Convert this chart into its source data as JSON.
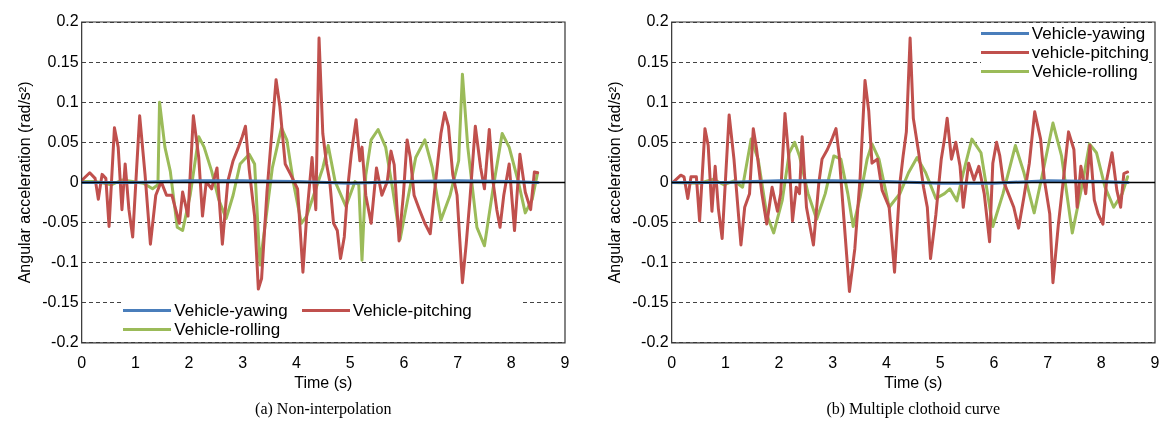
{
  "chart_data": [
    {
      "type": "line",
      "title": "(a) Non-interpolation",
      "xlabel": "Time (s)",
      "ylabel": "Angular acceleration (rad/s²)",
      "xlim": [
        0,
        9
      ],
      "xticks": [
        0,
        1,
        2,
        3,
        4,
        5,
        6,
        7,
        8,
        9
      ],
      "ylim": [
        -0.2,
        0.2
      ],
      "yticks": [
        -0.2,
        -0.15,
        -0.1,
        -0.05,
        0,
        0.05,
        0.1,
        0.15,
        0.2
      ],
      "grid": "y",
      "legend": "bottom",
      "marker": "none",
      "line_style": "solid",
      "series": [
        {
          "name": "Vehicle-yawing",
          "color": "#4a7ebb",
          "x": [
            0,
            1,
            1.5,
            2,
            3,
            4,
            5,
            6,
            7,
            8,
            8.5
          ],
          "values": [
            0,
            0,
            0.001,
            0.002,
            0.002,
            0.001,
            -0.001,
            0.001,
            0.002,
            0.001,
            0
          ]
        },
        {
          "name": "Vehicle-pitching",
          "color": "#c0504d",
          "x": [
            0.01,
            0.15,
            0.25,
            0.31,
            0.38,
            0.45,
            0.51,
            0.61,
            0.68,
            0.75,
            0.81,
            0.88,
            0.95,
            1.08,
            1.18,
            1.28,
            1.38,
            1.48,
            1.58,
            1.68,
            1.82,
            1.88,
            1.98,
            2.08,
            2.18,
            2.25,
            2.32,
            2.42,
            2.52,
            2.62,
            2.72,
            2.82,
            2.92,
            2.99,
            3.05,
            3.12,
            3.22,
            3.29,
            3.35,
            3.45,
            3.55,
            3.62,
            3.69,
            3.79,
            3.89,
            4.02,
            4.12,
            4.19,
            4.29,
            4.36,
            4.42,
            4.49,
            4.56,
            4.62,
            4.69,
            4.76,
            4.82,
            4.89,
            4.96,
            5.02,
            5.11,
            5.18,
            5.22,
            5.29,
            5.39,
            5.49,
            5.59,
            5.69,
            5.76,
            5.82,
            5.91,
            5.99,
            6.06,
            6.12,
            6.19,
            6.29,
            6.39,
            6.49,
            6.59,
            6.69,
            6.76,
            6.83,
            6.91,
            6.99,
            7.09,
            7.16,
            7.23,
            7.33,
            7.43,
            7.5,
            7.59,
            7.66,
            7.73,
            7.79,
            7.86,
            7.96,
            8.06,
            8.16,
            8.26,
            8.36,
            8.43,
            8.49
          ],
          "values": [
            0.003,
            0.012,
            0.005,
            -0.021,
            0.01,
            0.005,
            -0.055,
            0.068,
            0.044,
            -0.034,
            0.023,
            -0.034,
            -0.068,
            0.083,
            0.01,
            -0.077,
            -0.016,
            0.001,
            -0.016,
            -0.016,
            -0.051,
            -0.012,
            -0.042,
            0.083,
            0.031,
            -0.042,
            0.001,
            -0.008,
            0.018,
            -0.077,
            0.001,
            0.027,
            0.044,
            0.057,
            0.07,
            0.016,
            -0.042,
            -0.133,
            -0.12,
            -0.012,
            0.07,
            0.128,
            0.095,
            0.023,
            0.01,
            -0.008,
            -0.112,
            -0.042,
            0.031,
            -0.034,
            0.18,
            0.061,
            0.023,
            0.001,
            -0.051,
            -0.06,
            -0.095,
            -0.068,
            -0.003,
            0.035,
            0.078,
            0.027,
            0.044,
            -0.016,
            -0.051,
            0.018,
            -0.016,
            0.001,
            0.039,
            0.022,
            -0.073,
            -0.016,
            0.053,
            0.031,
            -0.016,
            -0.034,
            -0.051,
            -0.064,
            0.001,
            0.061,
            0.087,
            0.07,
            0.01,
            -0.016,
            -0.125,
            -0.077,
            -0.021,
            0.07,
            0.018,
            -0.008,
            0.066,
            0.001,
            -0.034,
            -0.056,
            -0.016,
            0.023,
            -0.06,
            0.035,
            -0.012,
            -0.034,
            0.013,
            0.012
          ]
        },
        {
          "name": "Vehicle-rolling",
          "color": "#9bbb59",
          "x": [
            0.01,
            0.28,
            0.55,
            0.75,
            0.95,
            1.15,
            1.32,
            1.42,
            1.45,
            1.55,
            1.65,
            1.78,
            1.88,
            2.02,
            2.18,
            2.28,
            2.42,
            2.55,
            2.69,
            2.82,
            2.95,
            3.12,
            3.22,
            3.32,
            3.42,
            3.55,
            3.72,
            3.82,
            3.95,
            4.09,
            4.19,
            4.32,
            4.49,
            4.59,
            4.72,
            4.92,
            5.09,
            5.16,
            5.22,
            5.29,
            5.39,
            5.52,
            5.66,
            5.79,
            5.93,
            6.06,
            6.22,
            6.39,
            6.53,
            6.69,
            6.86,
            7.02,
            7.09,
            7.19,
            7.36,
            7.5,
            7.66,
            7.83,
            7.96,
            8.13,
            8.26,
            8.39,
            8.49
          ],
          "values": [
            0.001,
            0.001,
            -0.003,
            0.003,
            0.001,
            -0.001,
            -0.008,
            -0.003,
            0.1,
            0.044,
            0.014,
            -0.056,
            -0.06,
            -0.016,
            0.057,
            0.044,
            0.014,
            -0.021,
            -0.045,
            -0.016,
            0.023,
            0.035,
            0.023,
            -0.103,
            -0.051,
            0.018,
            0.068,
            0.053,
            -0.003,
            -0.051,
            -0.042,
            -0.016,
            0.018,
            0.046,
            0.001,
            -0.03,
            0.001,
            -0.003,
            -0.097,
            0.009,
            0.053,
            0.066,
            0.044,
            -0.008,
            -0.071,
            -0.025,
            0.031,
            0.053,
            0.018,
            -0.047,
            -0.016,
            0.027,
            0.135,
            0.044,
            -0.056,
            -0.079,
            -0.008,
            0.061,
            0.044,
            0.001,
            -0.038,
            -0.021,
            0.012
          ]
        }
      ]
    },
    {
      "type": "line",
      "title": "(b) Multiple clothoid curve",
      "xlabel": "Time (s)",
      "ylabel": "Angular acceleration (rad/s²)",
      "xlim": [
        0,
        9
      ],
      "xticks": [
        0,
        1,
        2,
        3,
        4,
        5,
        6,
        7,
        8,
        9
      ],
      "ylim": [
        -0.2,
        0.2
      ],
      "yticks": [
        -0.2,
        -0.15,
        -0.1,
        -0.05,
        0,
        0.05,
        0.1,
        0.15,
        0.2
      ],
      "grid": "y",
      "legend": "top right",
      "marker": "none",
      "line_style": "solid",
      "series": [
        {
          "name": "Vehicle-yawing",
          "color": "#4a7ebb",
          "x": [
            0,
            1,
            1.5,
            2,
            3,
            4,
            5,
            6,
            7,
            8,
            8.5
          ],
          "values": [
            0,
            0,
            0.001,
            0.002,
            0.002,
            0.001,
            -0.001,
            -0.001,
            0.002,
            0.001,
            0
          ]
        },
        {
          "name": "vehicle-pitching",
          "color": "#c0504d",
          "x": [
            0.04,
            0.17,
            0.23,
            0.3,
            0.36,
            0.46,
            0.52,
            0.62,
            0.68,
            0.75,
            0.81,
            0.87,
            0.94,
            1.07,
            1.16,
            1.29,
            1.36,
            1.45,
            1.52,
            1.58,
            1.68,
            1.77,
            1.87,
            1.97,
            2.03,
            2.11,
            2.19,
            2.25,
            2.32,
            2.38,
            2.43,
            2.51,
            2.64,
            2.74,
            2.8,
            2.9,
            2.99,
            3.06,
            3.12,
            3.21,
            3.31,
            3.41,
            3.51,
            3.6,
            3.67,
            3.73,
            3.83,
            3.92,
            4.05,
            4.15,
            4.25,
            4.31,
            4.37,
            4.44,
            4.5,
            4.6,
            4.69,
            4.76,
            4.82,
            4.92,
            5.02,
            5.08,
            5.13,
            5.21,
            5.29,
            5.37,
            5.43,
            5.53,
            5.63,
            5.72,
            5.82,
            5.92,
            5.98,
            6.05,
            6.11,
            6.17,
            6.27,
            6.37,
            6.46,
            6.56,
            6.66,
            6.76,
            6.87,
            6.94,
            7.04,
            7.1,
            7.2,
            7.3,
            7.39,
            7.49,
            7.55,
            7.62,
            7.71,
            7.79,
            7.87,
            7.94,
            8.03,
            8.1,
            8.2,
            8.29,
            8.36,
            8.42,
            8.49
          ],
          "values": [
            0.001,
            0.009,
            0.007,
            -0.02,
            0.007,
            0.007,
            -0.048,
            0.067,
            0.046,
            -0.036,
            0.02,
            -0.033,
            -0.07,
            0.084,
            0.029,
            -0.078,
            -0.031,
            -0.014,
            0.067,
            0.042,
            -0.014,
            -0.052,
            -0.006,
            -0.036,
            -0.014,
            0.086,
            0.024,
            -0.048,
            -0.006,
            -0.014,
            0.057,
            -0.031,
            -0.078,
            -0.001,
            0.029,
            0.041,
            0.055,
            0.067,
            0.033,
            -0.048,
            -0.136,
            -0.083,
            0.007,
            0.127,
            0.089,
            0.024,
            0.029,
            -0.01,
            -0.031,
            -0.112,
            -0.001,
            0.033,
            0.063,
            0.18,
            0.08,
            0.037,
            -0.006,
            -0.031,
            -0.095,
            -0.04,
            0.029,
            0.054,
            0.08,
            0.029,
            0.05,
            0.02,
            -0.031,
            0.024,
            0.003,
            0.02,
            -0.014,
            -0.074,
            0.024,
            0.05,
            0.033,
            0.003,
            -0.014,
            -0.031,
            -0.057,
            -0.018,
            0.024,
            0.088,
            0.054,
            0.003,
            -0.039,
            -0.125,
            -0.053,
            0.007,
            0.063,
            0.041,
            -0.031,
            0.02,
            -0.014,
            0.046,
            -0.022,
            -0.039,
            -0.052,
            0.003,
            0.037,
            -0.01,
            -0.031,
            0.011,
            0.013
          ]
        },
        {
          "name": "Vehicle-rolling",
          "color": "#9bbb59",
          "x": [
            0.01,
            0.52,
            0.78,
            0.97,
            1.16,
            1.32,
            1.48,
            1.61,
            1.77,
            1.9,
            2.06,
            2.19,
            2.29,
            2.38,
            2.54,
            2.7,
            2.86,
            3.02,
            3.15,
            3.28,
            3.38,
            3.51,
            3.64,
            3.73,
            3.86,
            4.05,
            4.25,
            4.41,
            4.57,
            4.73,
            4.92,
            5.08,
            5.18,
            5.31,
            5.43,
            5.59,
            5.76,
            5.98,
            6.17,
            6.4,
            6.56,
            6.75,
            6.91,
            7.1,
            7.26,
            7.46,
            7.65,
            7.78,
            7.91,
            8.07,
            8.23,
            8.39,
            8.49
          ],
          "values": [
            0,
            -0.001,
            0.004,
            -0.003,
            0.002,
            -0.006,
            0.054,
            0.029,
            -0.04,
            -0.063,
            -0.022,
            0.037,
            0.05,
            0.033,
            -0.014,
            -0.046,
            -0.014,
            0.033,
            0.029,
            -0.014,
            -0.055,
            -0.018,
            0.029,
            0.048,
            0.029,
            -0.031,
            -0.014,
            0.012,
            0.031,
            0.012,
            -0.02,
            -0.014,
            -0.008,
            -0.023,
            0.012,
            0.054,
            0.037,
            -0.055,
            -0.014,
            0.046,
            0.012,
            -0.038,
            0.012,
            0.074,
            0.033,
            -0.063,
            -0.001,
            0.048,
            0.037,
            -0.006,
            -0.031,
            -0.014,
            0.007
          ]
        }
      ]
    }
  ]
}
